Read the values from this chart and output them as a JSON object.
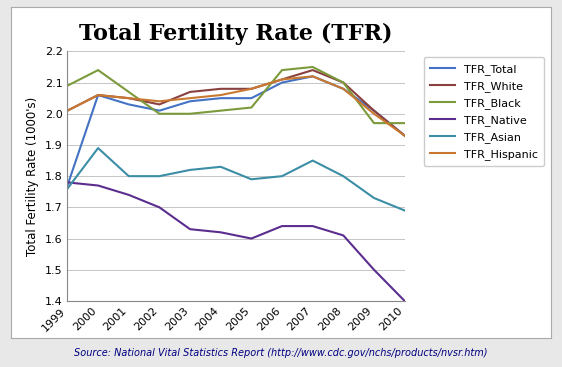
{
  "title": "Total Fertility Rate (TFR)",
  "ylabel": "Total Fertility Rate (1000's)",
  "source_prefix": "Source: National Vital Statistics Report (",
  "source_url": "http://www.cdc.gov/nchs/products/nvsr.htm",
  "source_suffix": ")",
  "years": [
    1999,
    2000,
    2001,
    2002,
    2003,
    2004,
    2005,
    2006,
    2007,
    2008,
    2009,
    2010
  ],
  "series_order": [
    "TFR_Total",
    "TFR_White",
    "TFR_Black",
    "TFR_Native",
    "TFR_Asian",
    "TFR_Hispanic"
  ],
  "series": {
    "TFR_Total": [
      1.77,
      2.06,
      2.03,
      2.01,
      2.04,
      2.05,
      2.05,
      2.1,
      2.12,
      2.08,
      2.01,
      1.93
    ],
    "TFR_White": [
      2.01,
      2.06,
      2.05,
      2.03,
      2.07,
      2.08,
      2.08,
      2.11,
      2.14,
      2.1,
      2.01,
      1.93
    ],
    "TFR_Black": [
      2.09,
      2.14,
      2.07,
      2.0,
      2.0,
      2.01,
      2.02,
      2.14,
      2.15,
      2.1,
      1.97,
      1.97
    ],
    "TFR_Native": [
      1.78,
      1.77,
      1.74,
      1.7,
      1.63,
      1.62,
      1.6,
      1.64,
      1.64,
      1.61,
      1.5,
      1.4
    ],
    "TFR_Asian": [
      1.76,
      1.89,
      1.8,
      1.8,
      1.82,
      1.83,
      1.79,
      1.8,
      1.85,
      1.8,
      1.73,
      1.69
    ],
    "TFR_Hispanic": [
      2.01,
      2.06,
      2.05,
      2.04,
      2.05,
      2.06,
      2.08,
      2.11,
      2.12,
      2.08,
      2.0,
      1.93
    ]
  },
  "colors": {
    "TFR_Total": "#4472C4",
    "TFR_White": "#8B4040",
    "TFR_Black": "#7B9A3A",
    "TFR_Native": "#5B2D8E",
    "TFR_Asian": "#3B8EA5",
    "TFR_Hispanic": "#C87830"
  },
  "ylim": [
    1.4,
    2.2
  ],
  "yticks": [
    1.4,
    1.5,
    1.6,
    1.7,
    1.8,
    1.9,
    2.0,
    2.1,
    2.2
  ],
  "bg_color": "#ffffff",
  "outer_bg": "#e8e8e8",
  "title_fontsize": 16,
  "ylabel_fontsize": 8.5,
  "legend_fontsize": 8,
  "tick_fontsize": 8,
  "source_fontsize": 7,
  "linewidth": 1.5
}
